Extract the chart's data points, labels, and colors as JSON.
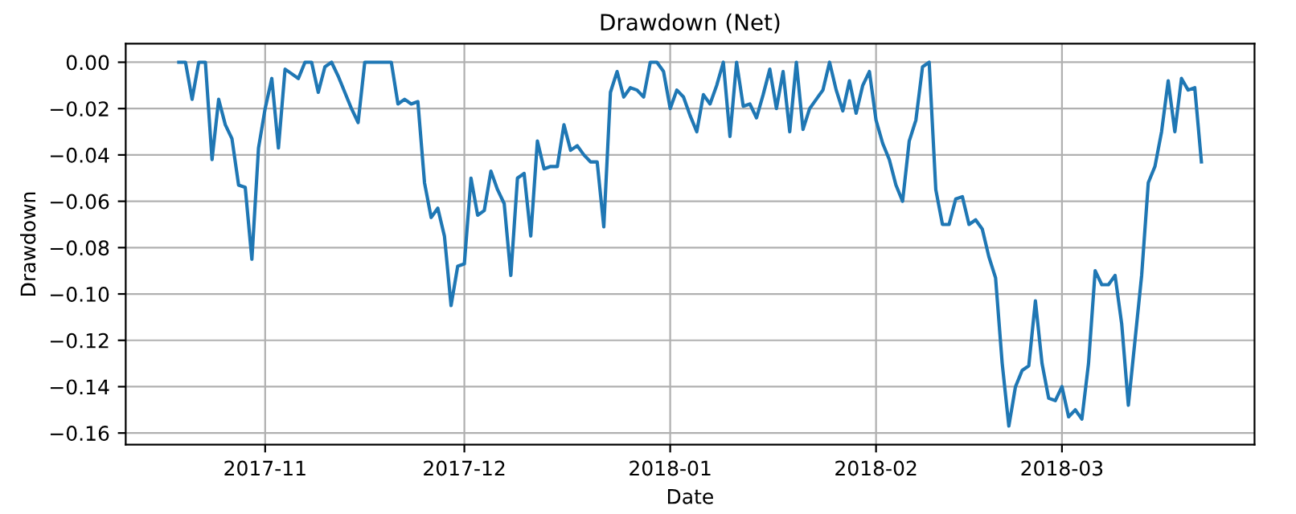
{
  "chart_data": {
    "type": "line",
    "title": "Drawdown (Net)",
    "xlabel": "Date",
    "ylabel": "Drawdown",
    "x": [
      "2017-10-19",
      "2017-10-20",
      "2017-10-21",
      "2017-10-22",
      "2017-10-23",
      "2017-10-24",
      "2017-10-25",
      "2017-10-26",
      "2017-10-27",
      "2017-10-28",
      "2017-10-29",
      "2017-10-30",
      "2017-10-31",
      "2017-11-01",
      "2017-11-02",
      "2017-11-03",
      "2017-11-04",
      "2017-11-05",
      "2017-11-06",
      "2017-11-07",
      "2017-11-08",
      "2017-11-09",
      "2017-11-10",
      "2017-11-11",
      "2017-11-12",
      "2017-11-13",
      "2017-11-14",
      "2017-11-15",
      "2017-11-16",
      "2017-11-17",
      "2017-11-18",
      "2017-11-19",
      "2017-11-20",
      "2017-11-21",
      "2017-11-22",
      "2017-11-23",
      "2017-11-24",
      "2017-11-25",
      "2017-11-26",
      "2017-11-27",
      "2017-11-28",
      "2017-11-29",
      "2017-11-30",
      "2017-12-01",
      "2017-12-02",
      "2017-12-03",
      "2017-12-04",
      "2017-12-05",
      "2017-12-06",
      "2017-12-07",
      "2017-12-08",
      "2017-12-09",
      "2017-12-10",
      "2017-12-11",
      "2017-12-12",
      "2017-12-13",
      "2017-12-14",
      "2017-12-15",
      "2017-12-16",
      "2017-12-17",
      "2017-12-18",
      "2017-12-19",
      "2017-12-20",
      "2017-12-21",
      "2017-12-22",
      "2017-12-23",
      "2017-12-24",
      "2017-12-25",
      "2017-12-26",
      "2017-12-27",
      "2017-12-28",
      "2017-12-29",
      "2017-12-30",
      "2017-12-31",
      "2018-01-01",
      "2018-01-02",
      "2018-01-03",
      "2018-01-04",
      "2018-01-05",
      "2018-01-06",
      "2018-01-07",
      "2018-01-08",
      "2018-01-09",
      "2018-01-10",
      "2018-01-11",
      "2018-01-12",
      "2018-01-13",
      "2018-01-14",
      "2018-01-15",
      "2018-01-16",
      "2018-01-17",
      "2018-01-18",
      "2018-01-19",
      "2018-01-20",
      "2018-01-21",
      "2018-01-22",
      "2018-01-23",
      "2018-01-24",
      "2018-01-25",
      "2018-01-26",
      "2018-01-27",
      "2018-01-28",
      "2018-01-29",
      "2018-01-30",
      "2018-01-31",
      "2018-02-01",
      "2018-02-02",
      "2018-02-03",
      "2018-02-04",
      "2018-02-05",
      "2018-02-06",
      "2018-02-07",
      "2018-02-08",
      "2018-02-09",
      "2018-02-10",
      "2018-02-11",
      "2018-02-12",
      "2018-02-13",
      "2018-02-14",
      "2018-02-15",
      "2018-02-16",
      "2018-02-17",
      "2018-02-18",
      "2018-02-19",
      "2018-02-20",
      "2018-02-21",
      "2018-02-22",
      "2018-02-23",
      "2018-02-24",
      "2018-02-25",
      "2018-02-26",
      "2018-02-27",
      "2018-02-28",
      "2018-03-01",
      "2018-03-02",
      "2018-03-03",
      "2018-03-04",
      "2018-03-05",
      "2018-03-06",
      "2018-03-07",
      "2018-03-08",
      "2018-03-09",
      "2018-03-10",
      "2018-03-11",
      "2018-03-12",
      "2018-03-13",
      "2018-03-14",
      "2018-03-15",
      "2018-03-16",
      "2018-03-17",
      "2018-03-18",
      "2018-03-19",
      "2018-03-20",
      "2018-03-21",
      "2018-03-22"
    ],
    "series": [
      {
        "color": "#1f77b4",
        "values": [
          0.0,
          0.0,
          -0.016,
          0.0,
          0.0,
          -0.042,
          -0.016,
          -0.027,
          -0.033,
          -0.053,
          -0.054,
          -0.085,
          -0.037,
          -0.02,
          -0.007,
          -0.037,
          -0.003,
          -0.005,
          -0.007,
          0.0,
          0.0,
          -0.013,
          -0.002,
          0.0,
          -0.006,
          -0.013,
          -0.02,
          -0.026,
          0.0,
          0.0,
          0.0,
          0.0,
          0.0,
          -0.018,
          -0.016,
          -0.018,
          -0.017,
          -0.052,
          -0.067,
          -0.063,
          -0.075,
          -0.105,
          -0.088,
          -0.087,
          -0.05,
          -0.066,
          -0.064,
          -0.047,
          -0.055,
          -0.061,
          -0.092,
          -0.05,
          -0.048,
          -0.075,
          -0.034,
          -0.046,
          -0.045,
          -0.045,
          -0.027,
          -0.038,
          -0.036,
          -0.04,
          -0.043,
          -0.043,
          -0.071,
          -0.013,
          -0.004,
          -0.015,
          -0.011,
          -0.012,
          -0.015,
          0.0,
          0.0,
          -0.004,
          -0.02,
          -0.012,
          -0.015,
          -0.023,
          -0.03,
          -0.014,
          -0.018,
          -0.01,
          0.0,
          -0.032,
          0.0,
          -0.019,
          -0.018,
          -0.024,
          -0.014,
          -0.003,
          -0.02,
          -0.004,
          -0.03,
          0.0,
          -0.029,
          -0.02,
          -0.016,
          -0.012,
          0.0,
          -0.012,
          -0.021,
          -0.008,
          -0.022,
          -0.01,
          -0.004,
          -0.025,
          -0.035,
          -0.042,
          -0.053,
          -0.06,
          -0.034,
          -0.025,
          -0.002,
          0.0,
          -0.055,
          -0.07,
          -0.07,
          -0.059,
          -0.058,
          -0.07,
          -0.068,
          -0.072,
          -0.084,
          -0.093,
          -0.13,
          -0.157,
          -0.14,
          -0.133,
          -0.131,
          -0.103,
          -0.13,
          -0.145,
          -0.146,
          -0.14,
          -0.153,
          -0.15,
          -0.154,
          -0.13,
          -0.09,
          -0.096,
          -0.096,
          -0.092,
          -0.113,
          -0.148,
          -0.12,
          -0.092,
          -0.052,
          -0.045,
          -0.03,
          -0.008,
          -0.03,
          -0.007,
          -0.012,
          -0.011,
          -0.043
        ]
      }
    ],
    "xlim": [
      "2017-10-11",
      "2018-03-30"
    ],
    "xticks": [
      {
        "value": "2017-11-01",
        "label": "2017-11"
      },
      {
        "value": "2017-12-01",
        "label": "2017-12"
      },
      {
        "value": "2018-01-01",
        "label": "2018-01"
      },
      {
        "value": "2018-02-01",
        "label": "2018-02"
      },
      {
        "value": "2018-03-01",
        "label": "2018-03"
      }
    ],
    "ylim": [
      -0.165,
      0.008
    ],
    "yticks": [
      {
        "value": -0.16,
        "label": "−0.16"
      },
      {
        "value": -0.14,
        "label": "−0.14"
      },
      {
        "value": -0.12,
        "label": "−0.12"
      },
      {
        "value": -0.1,
        "label": "−0.10"
      },
      {
        "value": -0.08,
        "label": "−0.08"
      },
      {
        "value": -0.06,
        "label": "−0.06"
      },
      {
        "value": -0.04,
        "label": "−0.04"
      },
      {
        "value": -0.02,
        "label": "−0.02"
      },
      {
        "value": 0,
        "label": "0.00"
      }
    ],
    "grid": true,
    "line_style": "solid",
    "marker": "none"
  }
}
